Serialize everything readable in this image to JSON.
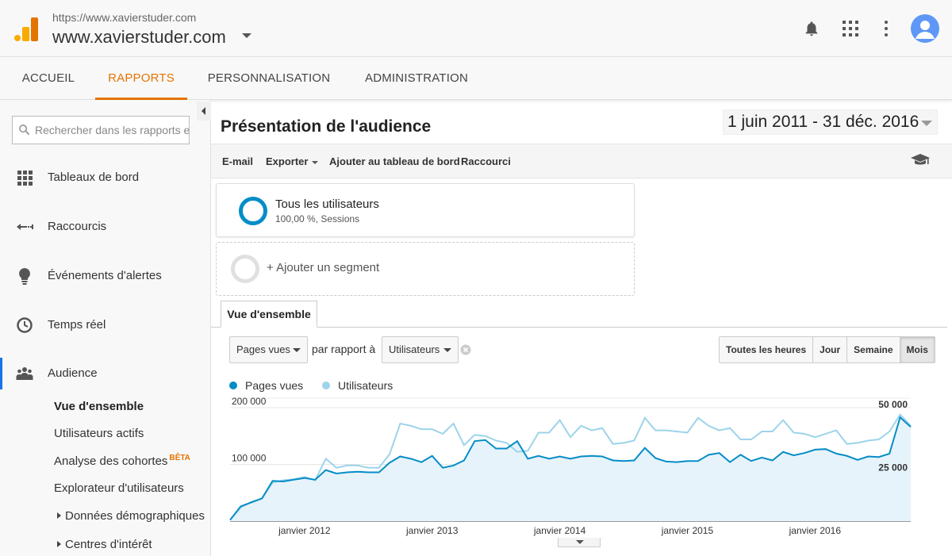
{
  "header": {
    "account_url": "https://www.xavierstuder.com",
    "account_name": "www.xavierstuder.com",
    "icons": [
      "analytics-logo",
      "bell-icon",
      "apps-grid-icon",
      "more-vert-icon",
      "account-avatar"
    ]
  },
  "nav": {
    "tabs": [
      {
        "label": "ACCUEIL"
      },
      {
        "label": "RAPPORTS"
      },
      {
        "label": "PERSONNALISATION"
      },
      {
        "label": "ADMINISTRATION"
      }
    ],
    "active": "RAPPORTS"
  },
  "sidebar": {
    "search_placeholder": "Rechercher dans les rapports et l'aide",
    "items": [
      {
        "label": "Tableaux de bord",
        "icon": "dashboard-grid-icon"
      },
      {
        "label": "Raccourcis",
        "icon": "shortcut-arrow-icon"
      },
      {
        "label": "Événements d'alertes",
        "icon": "lightbulb-icon"
      },
      {
        "label": "Temps réel",
        "icon": "clock-icon"
      },
      {
        "label": "Audience",
        "icon": "people-icon"
      }
    ],
    "sub_items": [
      {
        "label": "Vue d'ensemble"
      },
      {
        "label": "Utilisateurs actifs"
      },
      {
        "label": "Analyse des cohortes",
        "badge": "BÊTA"
      },
      {
        "label": "Explorateur d'utilisateurs"
      },
      {
        "label": "Données démographiques"
      },
      {
        "label": "Centres d'intérêt"
      }
    ]
  },
  "main": {
    "title": "Présentation de l'audience",
    "date_range": "1 juin 2011 - 31 déc. 2016",
    "toolbar": {
      "email": "E-mail",
      "export": "Exporter",
      "add_dashboard": "Ajouter au tableau de bord",
      "shortcut": "Raccourci"
    },
    "segments": {
      "active_title": "Tous les utilisateurs",
      "active_sub": "100,00 %, Sessions",
      "add": "+ Ajouter un segment"
    },
    "tab": "Vue d'ensemble",
    "metric_primary": "Pages vues",
    "compare_label": "par rapport à",
    "metric_secondary": "Utilisateurs",
    "granularity": [
      "Toutes les heures",
      "Jour",
      "Semaine",
      "Mois"
    ],
    "granularity_selected": "Mois"
  },
  "chart_data": {
    "type": "line",
    "series": [
      {
        "name": "Pages vues",
        "color": "#058dc7",
        "axis": "left",
        "values": [
          2000,
          26000,
          33000,
          40000,
          71000,
          70000,
          73000,
          76000,
          73000,
          90000,
          84000,
          86000,
          87000,
          86000,
          86000,
          103000,
          114000,
          110000,
          104000,
          115000,
          94000,
          98000,
          107000,
          141000,
          143000,
          128000,
          128000,
          141000,
          110000,
          115000,
          110000,
          114000,
          110000,
          114000,
          115000,
          114000,
          107000,
          106000,
          107000,
          129000,
          111000,
          105000,
          104000,
          106000,
          106000,
          117000,
          120000,
          104000,
          117000,
          106000,
          112000,
          107000,
          122000,
          116000,
          120000,
          126000,
          127000,
          119000,
          115000,
          108000,
          114000,
          113000,
          119000,
          183000,
          166000
        ]
      },
      {
        "name": "Utilisateurs",
        "color": "#9dd4ea",
        "axis": "right",
        "values": [
          500,
          6000,
          8500,
          10000,
          17000,
          18000,
          18500,
          19500,
          18000,
          27500,
          23500,
          24500,
          24500,
          23500,
          23500,
          29500,
          43000,
          42000,
          40500,
          40500,
          38500,
          43000,
          33500,
          38000,
          37500,
          35500,
          34500,
          30500,
          31000,
          39000,
          39000,
          44500,
          37000,
          42000,
          40000,
          41000,
          34000,
          34500,
          35500,
          45500,
          40000,
          40000,
          39500,
          39000,
          45500,
          42000,
          40000,
          41000,
          36000,
          36000,
          39500,
          39500,
          44500,
          39000,
          38500,
          37000,
          38500,
          40000,
          34000,
          34500,
          35500,
          36000,
          39500,
          47000,
          42000
        ]
      }
    ],
    "x_tick_labels": [
      "janvier 2012",
      "janvier 2013",
      "janvier 2014",
      "janvier 2015",
      "janvier 2016"
    ],
    "x_tick_month_index": [
      7,
      19,
      31,
      43,
      55
    ],
    "left_axis_ticks": [
      {
        "value": 100000,
        "label": "100 000"
      },
      {
        "value": 200000,
        "label": "200 000"
      }
    ],
    "right_axis_ticks": [
      {
        "value": 25000,
        "label": "25 000"
      },
      {
        "value": 50000,
        "label": "50 000"
      }
    ],
    "ylim_left": [
      0,
      200000
    ],
    "ylim_right": [
      0,
      50000
    ],
    "grid": true
  }
}
